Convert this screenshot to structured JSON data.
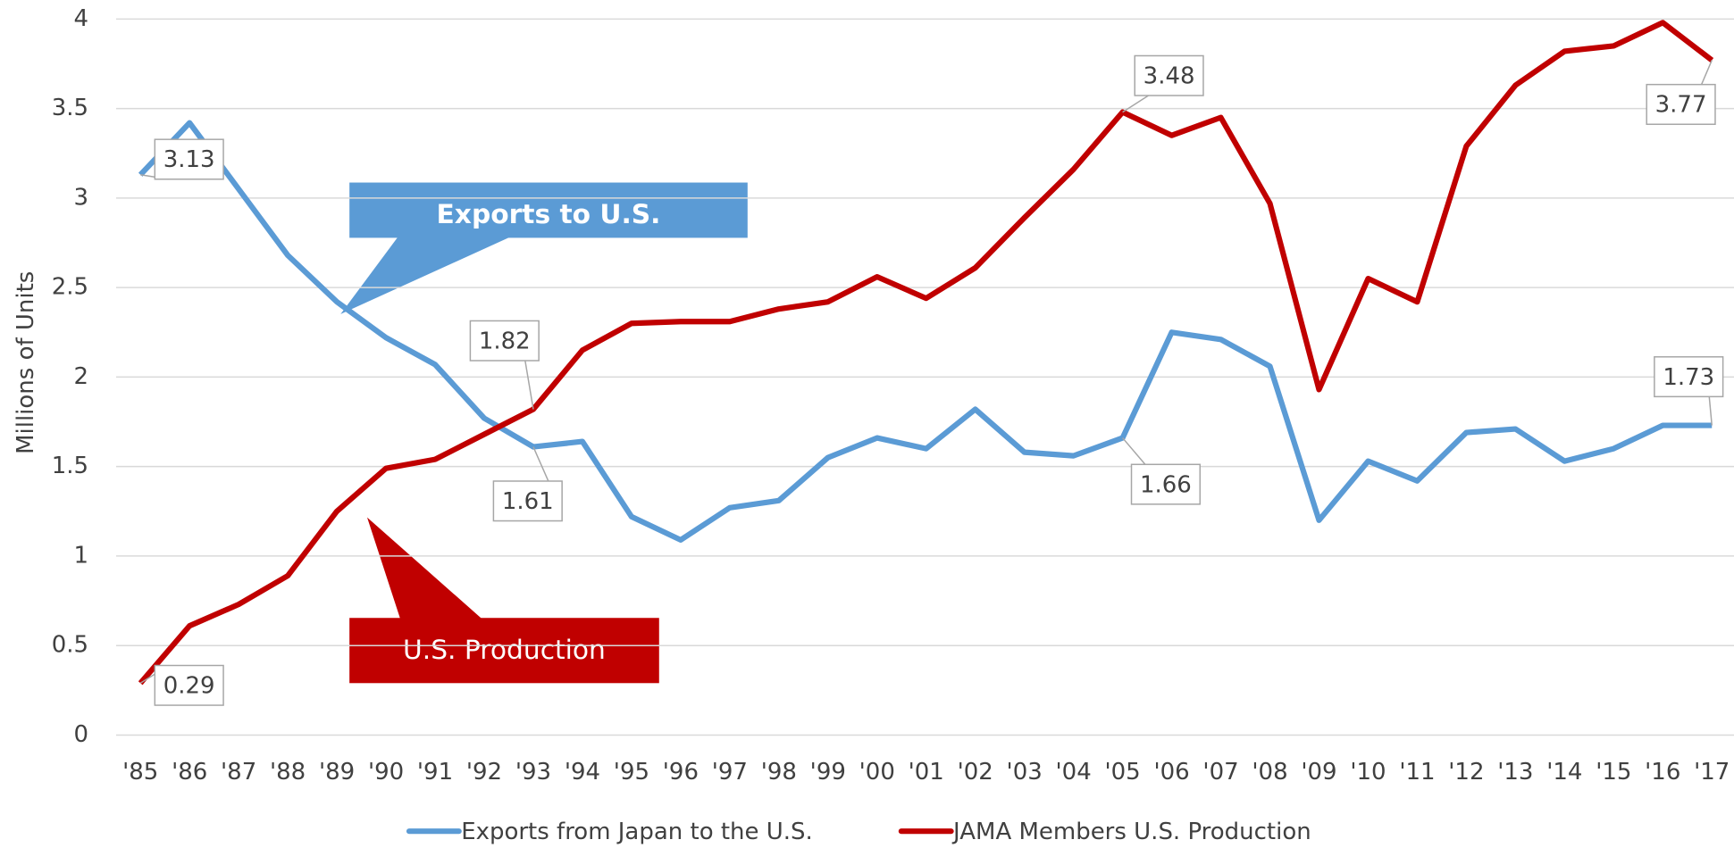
{
  "chart_data": {
    "type": "line",
    "y_label": "Millions of Units",
    "categories": [
      "'85",
      "'86",
      "'87",
      "'88",
      "'89",
      "'90",
      "'91",
      "'92",
      "'93",
      "'94",
      "'95",
      "'96",
      "'97",
      "'98",
      "'99",
      "'00",
      "'01",
      "'02",
      "'03",
      "'04",
      "'05",
      "'06",
      "'07",
      "'08",
      "'09",
      "'10",
      "'11",
      "'12",
      "'13",
      "'14",
      "'15",
      "'16",
      "'17"
    ],
    "series": [
      {
        "name": "Exports from Japan to the U.S.",
        "color": "#5b9bd5",
        "label_indices": [
          0,
          8,
          20,
          32
        ],
        "values": [
          3.13,
          3.42,
          3.05,
          2.68,
          2.42,
          2.22,
          2.07,
          1.77,
          1.61,
          1.64,
          1.22,
          1.09,
          1.27,
          1.31,
          1.55,
          1.66,
          1.6,
          1.82,
          1.58,
          1.56,
          1.66,
          2.25,
          2.21,
          2.06,
          1.2,
          1.53,
          1.42,
          1.69,
          1.71,
          1.53,
          1.6,
          1.73,
          1.73
        ]
      },
      {
        "name": "JAMA Members U.S. Production",
        "color": "#c00000",
        "label_indices": [
          0,
          8,
          20,
          32
        ],
        "values": [
          0.29,
          0.61,
          0.73,
          0.89,
          1.25,
          1.49,
          1.54,
          1.68,
          1.82,
          2.15,
          2.3,
          2.31,
          2.31,
          2.38,
          2.42,
          2.56,
          2.44,
          2.61,
          2.89,
          3.16,
          3.48,
          3.35,
          3.45,
          2.97,
          1.93,
          2.55,
          2.42,
          3.29,
          3.63,
          3.82,
          3.85,
          3.98,
          3.77
        ]
      }
    ],
    "annotations": [
      {
        "text": "Exports to U.S.",
        "color": "#5b9bd5"
      },
      {
        "text": "U.S. Production",
        "color": "#c00000"
      }
    ],
    "ylim": [
      0,
      4
    ],
    "yticks": [
      0,
      0.5,
      1,
      1.5,
      2,
      2.5,
      3,
      3.5,
      4
    ],
    "grid": true
  }
}
